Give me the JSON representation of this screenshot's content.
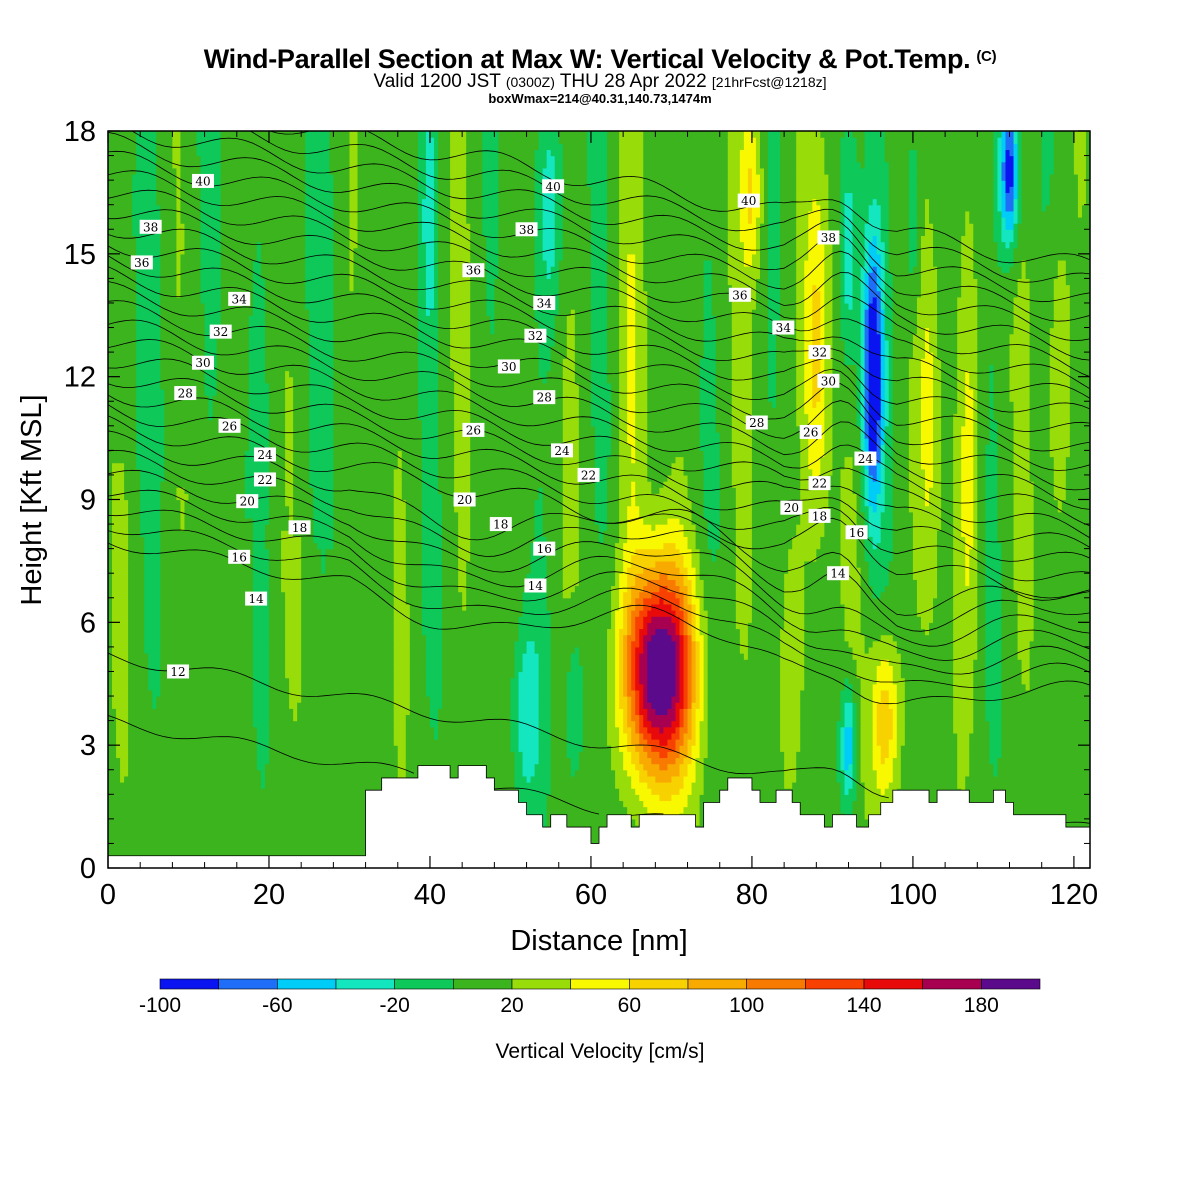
{
  "title": {
    "main": "Wind-Parallel Section at Max W: Vertical Velocity & Pot.Temp.",
    "copyright": "(C)",
    "valid_prefix": "Valid 1200 JST",
    "valid_z": "(0300Z)",
    "valid_date": "THU 28 Apr 2022",
    "valid_fcst": "[21hrFcst@1218z]",
    "box_line": "boxWmax=214@40.31,140.73,1474m"
  },
  "chart_data": {
    "type": "heatmap",
    "xlabel": "Distance [nm]",
    "ylabel": "Height [Kft MSL]",
    "xlim": [
      0,
      122
    ],
    "ylim": [
      0,
      18
    ],
    "xticks": [
      0,
      20,
      40,
      60,
      80,
      100,
      120
    ],
    "yticks": [
      0,
      3,
      6,
      9,
      12,
      15,
      18
    ],
    "colorbar": {
      "label": "Vertical Velocity [cm/s]",
      "levels": [
        -100,
        -80,
        -60,
        -40,
        -20,
        0,
        20,
        40,
        60,
        80,
        100,
        120,
        140,
        160,
        180,
        200
      ],
      "tick_labels": [
        -100,
        -60,
        -20,
        20,
        60,
        100,
        140,
        180
      ],
      "colors": [
        "#0a14f0",
        "#1e6ef8",
        "#00ccf8",
        "#14e6c0",
        "#0ec85a",
        "#3cb41e",
        "#98dc0a",
        "#f8f800",
        "#f8d200",
        "#f8aa00",
        "#f87a00",
        "#f84000",
        "#e80a0a",
        "#a80050",
        "#5c0a8c"
      ],
      "placement": "bottom"
    },
    "background_w": 10,
    "updrafts": [
      {
        "x": 68.5,
        "y": 4.8,
        "xw": 4.2,
        "yw": 2.6,
        "peak": 214
      },
      {
        "x": 96.5,
        "y": 3.6,
        "xw": 1.8,
        "yw": 2.0,
        "peak": 80
      },
      {
        "x": 88,
        "y": 12.5,
        "xw": 1.6,
        "yw": 4.5,
        "peak": 70
      },
      {
        "x": 80,
        "y": 16.5,
        "xw": 1.4,
        "yw": 2.0,
        "peak": 60
      },
      {
        "x": 102,
        "y": 11,
        "xw": 1.4,
        "yw": 5,
        "peak": 45
      },
      {
        "x": 107,
        "y": 10,
        "xw": 1.4,
        "yw": 5,
        "peak": 45
      },
      {
        "x": 118,
        "y": 12,
        "xw": 1.4,
        "yw": 4,
        "peak": 45
      },
      {
        "x": 65,
        "y": 12,
        "xw": 1.6,
        "yw": 5,
        "peak": 35
      },
      {
        "x": 85,
        "y": 5,
        "xw": 1.6,
        "yw": 3,
        "peak": 30
      }
    ],
    "downdrafts": [
      {
        "x": 95,
        "y": 12,
        "xw": 1.3,
        "yw": 3.2,
        "peak": -105
      },
      {
        "x": 112,
        "y": 17,
        "xw": 1.2,
        "yw": 1.8,
        "peak": -100
      },
      {
        "x": 92,
        "y": 3,
        "xw": 1.0,
        "yw": 1.5,
        "peak": -60
      },
      {
        "x": 52,
        "y": 3.8,
        "xw": 1.8,
        "yw": 2.2,
        "peak": -35
      },
      {
        "x": 58,
        "y": 4.0,
        "xw": 1.2,
        "yw": 2.0,
        "peak": -30
      },
      {
        "x": 40,
        "y": 16,
        "xw": 1.0,
        "yw": 3.0,
        "peak": -25
      },
      {
        "x": 55,
        "y": 16,
        "xw": 1.6,
        "yw": 3.0,
        "peak": -30
      },
      {
        "x": 92,
        "y": 15,
        "xw": 1.2,
        "yw": 3.0,
        "peak": -40
      },
      {
        "x": 100,
        "y": 16,
        "xw": 1.0,
        "yw": 2.5,
        "peak": -30
      }
    ],
    "terrain_kft": [
      {
        "x": 31,
        "h": 0.3
      },
      {
        "x": 32,
        "h": 1.9
      },
      {
        "x": 34,
        "h": 2.2
      },
      {
        "x": 37,
        "h": 2.2
      },
      {
        "x": 38.5,
        "h": 2.5
      },
      {
        "x": 41.5,
        "h": 2.5
      },
      {
        "x": 42.5,
        "h": 2.2
      },
      {
        "x": 43.5,
        "h": 2.5
      },
      {
        "x": 46,
        "h": 2.5
      },
      {
        "x": 47,
        "h": 2.2
      },
      {
        "x": 48,
        "h": 1.9
      },
      {
        "x": 51,
        "h": 1.6
      },
      {
        "x": 52,
        "h": 1.3
      },
      {
        "x": 54,
        "h": 1.0
      },
      {
        "x": 55,
        "h": 1.3
      },
      {
        "x": 57,
        "h": 1.0
      },
      {
        "x": 60,
        "h": 0.6
      },
      {
        "x": 61,
        "h": 1.0
      },
      {
        "x": 62,
        "h": 1.3
      },
      {
        "x": 65,
        "h": 1.0
      },
      {
        "x": 66,
        "h": 1.3
      },
      {
        "x": 73,
        "h": 1.0
      },
      {
        "x": 74,
        "h": 1.6
      },
      {
        "x": 76,
        "h": 1.9
      },
      {
        "x": 77,
        "h": 2.2
      },
      {
        "x": 80,
        "h": 1.9
      },
      {
        "x": 81,
        "h": 1.6
      },
      {
        "x": 83,
        "h": 1.9
      },
      {
        "x": 85,
        "h": 1.6
      },
      {
        "x": 86,
        "h": 1.3
      },
      {
        "x": 89,
        "h": 1.0
      },
      {
        "x": 90,
        "h": 1.3
      },
      {
        "x": 93,
        "h": 1.0
      },
      {
        "x": 94.5,
        "h": 1.3
      },
      {
        "x": 96,
        "h": 1.6
      },
      {
        "x": 97.5,
        "h": 1.9
      },
      {
        "x": 102,
        "h": 1.6
      },
      {
        "x": 103,
        "h": 1.9
      },
      {
        "x": 107,
        "h": 1.6
      },
      {
        "x": 110,
        "h": 1.9
      },
      {
        "x": 111.5,
        "h": 1.6
      },
      {
        "x": 112.5,
        "h": 1.3
      },
      {
        "x": 119,
        "h": 1.0
      },
      {
        "x": 122,
        "h": 1.0
      }
    ],
    "theta_levels": [
      12,
      13,
      14,
      15,
      16,
      17,
      18,
      19,
      20,
      21,
      22,
      23,
      24,
      25,
      26,
      27,
      28,
      29,
      30,
      31,
      32,
      33,
      34,
      35,
      36,
      37,
      38,
      39,
      40,
      41
    ],
    "contour_labels": [
      {
        "text": "40",
        "x": 11.8,
        "y": 16.78
      },
      {
        "text": "38",
        "x": 5.3,
        "y": 15.66
      },
      {
        "text": "36",
        "x": 4.2,
        "y": 14.79
      },
      {
        "text": "34",
        "x": 16.3,
        "y": 13.9
      },
      {
        "text": "32",
        "x": 14.0,
        "y": 13.1
      },
      {
        "text": "30",
        "x": 11.8,
        "y": 12.34
      },
      {
        "text": "28",
        "x": 9.6,
        "y": 11.6
      },
      {
        "text": "26",
        "x": 15.1,
        "y": 10.8
      },
      {
        "text": "24",
        "x": 19.5,
        "y": 10.1
      },
      {
        "text": "22",
        "x": 19.5,
        "y": 9.49
      },
      {
        "text": "20",
        "x": 17.3,
        "y": 8.96
      },
      {
        "text": "18",
        "x": 23.8,
        "y": 8.32
      },
      {
        "text": "16",
        "x": 16.3,
        "y": 7.6
      },
      {
        "text": "14",
        "x": 18.4,
        "y": 6.58
      },
      {
        "text": "12",
        "x": 8.7,
        "y": 4.8
      },
      {
        "text": "40",
        "x": 55.3,
        "y": 16.65
      },
      {
        "text": "38",
        "x": 52.0,
        "y": 15.6
      },
      {
        "text": "36",
        "x": 45.4,
        "y": 14.6
      },
      {
        "text": "34",
        "x": 54.2,
        "y": 13.8
      },
      {
        "text": "32",
        "x": 53.1,
        "y": 13.0
      },
      {
        "text": "30",
        "x": 49.8,
        "y": 12.25
      },
      {
        "text": "28",
        "x": 54.2,
        "y": 11.5
      },
      {
        "text": "26",
        "x": 45.4,
        "y": 10.7
      },
      {
        "text": "24",
        "x": 56.4,
        "y": 10.2
      },
      {
        "text": "22",
        "x": 59.7,
        "y": 9.6
      },
      {
        "text": "20",
        "x": 44.3,
        "y": 9.0
      },
      {
        "text": "18",
        "x": 48.8,
        "y": 8.4
      },
      {
        "text": "16",
        "x": 54.2,
        "y": 7.8
      },
      {
        "text": "14",
        "x": 53.1,
        "y": 6.9
      },
      {
        "text": "40",
        "x": 79.6,
        "y": 16.3
      },
      {
        "text": "38",
        "x": 89.5,
        "y": 15.4
      },
      {
        "text": "36",
        "x": 78.5,
        "y": 14.0
      },
      {
        "text": "34",
        "x": 83.9,
        "y": 13.2
      },
      {
        "text": "32",
        "x": 88.4,
        "y": 12.6
      },
      {
        "text": "30",
        "x": 89.5,
        "y": 11.9
      },
      {
        "text": "28",
        "x": 80.6,
        "y": 10.88
      },
      {
        "text": "26",
        "x": 87.3,
        "y": 10.65
      },
      {
        "text": "24",
        "x": 94.1,
        "y": 10.0
      },
      {
        "text": "22",
        "x": 88.4,
        "y": 9.4
      },
      {
        "text": "20",
        "x": 84.9,
        "y": 8.8
      },
      {
        "text": "18",
        "x": 88.4,
        "y": 8.6
      },
      {
        "text": "16",
        "x": 93.0,
        "y": 8.2
      },
      {
        "text": "14",
        "x": 90.7,
        "y": 7.2
      }
    ]
  }
}
